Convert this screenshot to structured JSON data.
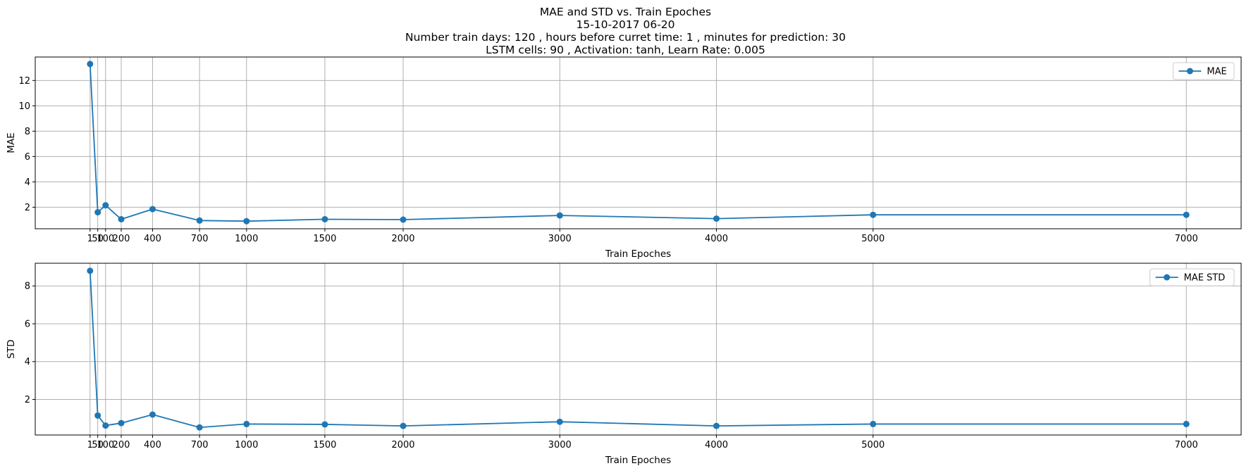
{
  "title": {
    "line1": "MAE and STD vs. Train Epoches",
    "line2": "15-10-2017 06-20",
    "line3": "Number train days: 120 , hours before curret time: 1 , minutes for prediction: 30",
    "line4": "LSTM cells: 90 , Activation: tanh, Learn Rate: 0.005"
  },
  "colors": {
    "series": "#1f77b4",
    "grid": "#b0b0b0",
    "axis": "#000000"
  },
  "chart_data": [
    {
      "type": "line",
      "xlabel": "Train Epoches",
      "ylabel": "MAE",
      "x": [
        1,
        50,
        100,
        200,
        400,
        700,
        1000,
        1500,
        2000,
        3000,
        4000,
        5000,
        7000
      ],
      "xticks": [
        1,
        50,
        100,
        200,
        400,
        700,
        1000,
        1500,
        2000,
        3000,
        4000,
        5000,
        7000
      ],
      "xtick_labels": [
        "1",
        "50",
        "100",
        "200",
        "400",
        "700",
        "1000",
        "1500",
        "2000",
        "3000",
        "4000",
        "5000",
        "7000"
      ],
      "xlim": [
        -349,
        7350
      ],
      "ylim": [
        0.3,
        13.85
      ],
      "yticks": [
        2,
        4,
        6,
        8,
        10,
        12
      ],
      "ytick_labels": [
        "2",
        "4",
        "6",
        "8",
        "10",
        "12"
      ],
      "grid": true,
      "legend_position": "top-right",
      "series": [
        {
          "name": "MAE",
          "values": [
            13.3,
            1.6,
            2.15,
            1.05,
            1.85,
            0.95,
            0.9,
            1.05,
            1.02,
            1.35,
            1.1,
            1.4,
            1.4
          ]
        }
      ]
    },
    {
      "type": "line",
      "xlabel": "Train Epoches",
      "ylabel": "STD",
      "x": [
        1,
        50,
        100,
        200,
        400,
        700,
        1000,
        1500,
        2000,
        3000,
        4000,
        5000,
        7000
      ],
      "xticks": [
        1,
        50,
        100,
        200,
        400,
        700,
        1000,
        1500,
        2000,
        3000,
        4000,
        5000,
        7000
      ],
      "xtick_labels": [
        "1",
        "50",
        "100",
        "200",
        "400",
        "700",
        "1000",
        "1500",
        "2000",
        "3000",
        "4000",
        "5000",
        "7000"
      ],
      "xlim": [
        -349,
        7350
      ],
      "ylim": [
        0.12,
        9.2
      ],
      "yticks": [
        2,
        4,
        6,
        8
      ],
      "ytick_labels": [
        "2",
        "4",
        "6",
        "8"
      ],
      "grid": true,
      "legend_position": "top-right",
      "series": [
        {
          "name": "MAE STD",
          "values": [
            8.8,
            1.15,
            0.62,
            0.75,
            1.2,
            0.52,
            0.7,
            0.68,
            0.6,
            0.82,
            0.6,
            0.7,
            0.7
          ]
        }
      ]
    }
  ]
}
